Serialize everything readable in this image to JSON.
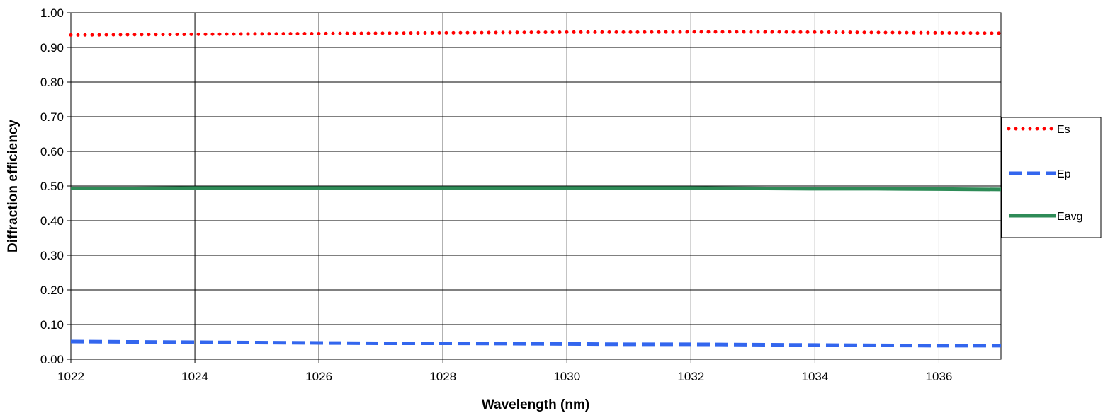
{
  "chart_data": {
    "type": "line",
    "title": "",
    "xlabel": "Wavelength (nm)",
    "ylabel": "Diffraction efficiency",
    "xlim": [
      1022,
      1037
    ],
    "ylim": [
      0.0,
      1.0
    ],
    "x_ticks": [
      1022,
      1024,
      1026,
      1028,
      1030,
      1032,
      1034,
      1036
    ],
    "x_tick_labels": [
      "1022",
      "1024",
      "1026",
      "1028",
      "1030",
      "1032",
      "1034",
      "1036"
    ],
    "y_ticks": [
      0.0,
      0.1,
      0.2,
      0.3,
      0.4,
      0.5,
      0.6,
      0.7,
      0.8,
      0.9,
      1.0
    ],
    "y_tick_labels": [
      "0.00",
      "0.10",
      "0.20",
      "0.30",
      "0.40",
      "0.50",
      "0.60",
      "0.70",
      "0.80",
      "0.90",
      "1.00"
    ],
    "grid": true,
    "legend_position": "right",
    "x": [
      1022,
      1023,
      1024,
      1025,
      1026,
      1027,
      1028,
      1029,
      1030,
      1031,
      1032,
      1033,
      1034,
      1035,
      1036,
      1037
    ],
    "series": [
      {
        "name": "Es",
        "style": "dotted",
        "color": "#ff0000",
        "values": [
          0.936,
          0.937,
          0.938,
          0.939,
          0.94,
          0.941,
          0.942,
          0.943,
          0.944,
          0.944,
          0.945,
          0.945,
          0.944,
          0.943,
          0.942,
          0.941
        ]
      },
      {
        "name": "Ep",
        "style": "dashed",
        "color": "#3366ee",
        "values": [
          0.051,
          0.05,
          0.049,
          0.048,
          0.047,
          0.046,
          0.046,
          0.045,
          0.044,
          0.043,
          0.043,
          0.042,
          0.041,
          0.04,
          0.039,
          0.039
        ]
      },
      {
        "name": "Eavg",
        "style": "solid",
        "color": "#2e8b57",
        "values": [
          0.493,
          0.493,
          0.494,
          0.494,
          0.494,
          0.494,
          0.494,
          0.494,
          0.494,
          0.494,
          0.494,
          0.493,
          0.492,
          0.492,
          0.491,
          0.49
        ]
      }
    ]
  }
}
